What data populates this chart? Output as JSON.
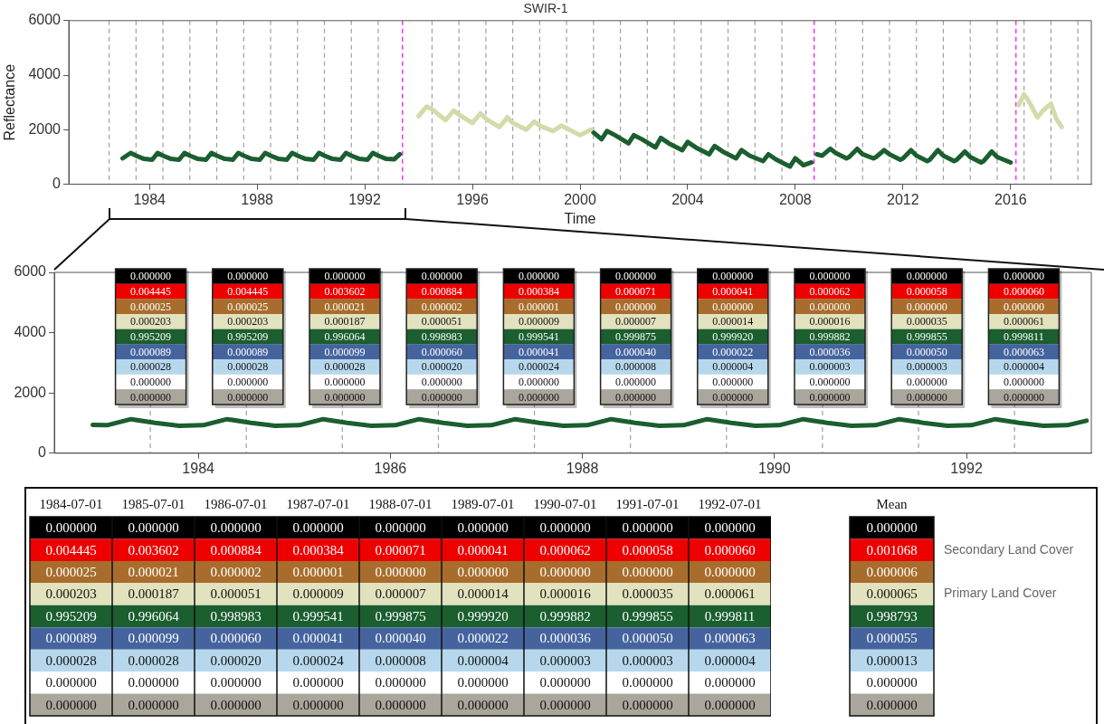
{
  "chart_data": [
    {
      "type": "line",
      "title": "SWIR-1",
      "xlabel": "Time",
      "ylabel": "Reflectance",
      "xlim": [
        1981,
        2019
      ],
      "xticks": [
        1984,
        1988,
        1992,
        1996,
        2000,
        2004,
        2008,
        2012,
        2016
      ],
      "ylim": [
        0,
        6000
      ],
      "yticks": [
        0,
        2000,
        4000,
        6000
      ],
      "legend": false,
      "grid": false,
      "series": [
        {
          "color": "#1b5e2f",
          "x": [
            1983.0,
            1983.3,
            1983.5,
            1983.8,
            1984.1,
            1984.3,
            1984.5,
            1984.8,
            1985.1,
            1985.3,
            1985.5,
            1985.8,
            1986.1,
            1986.3,
            1986.5,
            1986.8,
            1987.1,
            1987.3,
            1987.5,
            1987.8,
            1988.1,
            1988.3,
            1988.5,
            1988.8,
            1989.1,
            1989.3,
            1989.5,
            1989.8,
            1990.1,
            1990.3,
            1990.5,
            1990.8,
            1991.1,
            1991.3,
            1991.5,
            1991.8,
            1992.1,
            1992.3,
            1992.5,
            1992.8,
            1993.1,
            1993.3
          ],
          "values": [
            950,
            1150,
            1050,
            930,
            900,
            1150,
            1050,
            930,
            900,
            1150,
            1050,
            930,
            900,
            1150,
            1050,
            930,
            900,
            1150,
            1050,
            930,
            900,
            1150,
            1050,
            930,
            900,
            1150,
            1050,
            930,
            900,
            1150,
            1050,
            930,
            900,
            1150,
            1050,
            930,
            900,
            1150,
            1050,
            930,
            920,
            1100
          ]
        },
        {
          "color": "#d3dbab",
          "x": [
            1994.0,
            1994.3,
            1994.5,
            1995.0,
            1995.3,
            1995.5,
            1996.0,
            1996.3,
            1996.5,
            1997.0,
            1997.3,
            1997.5,
            1998.0,
            1998.3,
            1998.5,
            1999.0,
            1999.3,
            1999.5,
            2000.0,
            2000.4
          ],
          "values": [
            2500,
            2850,
            2750,
            2350,
            2700,
            2550,
            2250,
            2600,
            2400,
            2100,
            2450,
            2250,
            2000,
            2300,
            2150,
            1950,
            2150,
            2050,
            1800,
            2000
          ]
        },
        {
          "color": "#1b5e2f",
          "x": [
            2000.5,
            2000.8,
            2001.0,
            2001.3,
            2001.8,
            2002.0,
            2002.3,
            2002.8,
            2003.0,
            2003.3,
            2003.8,
            2004.0,
            2004.3,
            2004.8,
            2005.0,
            2005.3,
            2005.8,
            2006.0,
            2006.3,
            2006.8,
            2007.0,
            2007.3,
            2007.8,
            2008.0,
            2008.3,
            2008.6
          ],
          "values": [
            1900,
            1650,
            1950,
            1800,
            1500,
            1800,
            1650,
            1350,
            1700,
            1500,
            1250,
            1550,
            1350,
            1100,
            1400,
            1200,
            950,
            1250,
            1050,
            850,
            1100,
            900,
            650,
            950,
            700,
            800
          ]
        },
        {
          "color": "#1b5e2f",
          "x": [
            2008.8,
            2009.0,
            2009.3,
            2009.5,
            2009.9,
            2010.0,
            2010.3,
            2010.5,
            2010.9,
            2011.0,
            2011.3,
            2011.5,
            2011.9,
            2012.0,
            2012.3,
            2012.5,
            2012.9,
            2013.0,
            2013.3,
            2013.5,
            2013.9,
            2014.0,
            2014.3,
            2014.5,
            2014.9,
            2015.0,
            2015.3,
            2015.5,
            2016.0
          ],
          "values": [
            1100,
            1050,
            1300,
            1150,
            950,
            1000,
            1300,
            1100,
            950,
            1000,
            1250,
            1100,
            900,
            950,
            1250,
            1050,
            850,
            900,
            1250,
            1050,
            850,
            900,
            1200,
            1000,
            800,
            850,
            1200,
            1000,
            800
          ]
        },
        {
          "color": "#d3dbab",
          "x": [
            2016.3,
            2016.5,
            2016.7,
            2017.0,
            2017.2,
            2017.5,
            2017.7,
            2017.9
          ],
          "values": [
            2900,
            3300,
            3000,
            2450,
            2700,
            2950,
            2400,
            2100
          ]
        }
      ],
      "ref_lines": [
        {
          "axis": "x",
          "value": 1982.5,
          "color": "#a0a0a0",
          "line_style": "dashed"
        },
        {
          "axis": "x",
          "value": 1983.5,
          "color": "#a0a0a0",
          "line_style": "dashed"
        },
        {
          "axis": "x",
          "value": 1984.5,
          "color": "#a0a0a0",
          "line_style": "dashed"
        },
        {
          "axis": "x",
          "value": 1985.5,
          "color": "#a0a0a0",
          "line_style": "dashed"
        },
        {
          "axis": "x",
          "value": 1986.5,
          "color": "#a0a0a0",
          "line_style": "dashed"
        },
        {
          "axis": "x",
          "value": 1987.5,
          "color": "#a0a0a0",
          "line_style": "dashed"
        },
        {
          "axis": "x",
          "value": 1988.5,
          "color": "#a0a0a0",
          "line_style": "dashed"
        },
        {
          "axis": "x",
          "value": 1989.5,
          "color": "#a0a0a0",
          "line_style": "dashed"
        },
        {
          "axis": "x",
          "value": 1990.5,
          "color": "#a0a0a0",
          "line_style": "dashed"
        },
        {
          "axis": "x",
          "value": 1991.5,
          "color": "#a0a0a0",
          "line_style": "dashed"
        },
        {
          "axis": "x",
          "value": 1992.5,
          "color": "#a0a0a0",
          "line_style": "dashed"
        },
        {
          "axis": "x",
          "value": 1994.5,
          "color": "#a0a0a0",
          "line_style": "dashed"
        },
        {
          "axis": "x",
          "value": 1995.5,
          "color": "#a0a0a0",
          "line_style": "dashed"
        },
        {
          "axis": "x",
          "value": 1996.5,
          "color": "#a0a0a0",
          "line_style": "dashed"
        },
        {
          "axis": "x",
          "value": 1997.5,
          "color": "#a0a0a0",
          "line_style": "dashed"
        },
        {
          "axis": "x",
          "value": 1998.5,
          "color": "#a0a0a0",
          "line_style": "dashed"
        },
        {
          "axis": "x",
          "value": 1999.5,
          "color": "#a0a0a0",
          "line_style": "dashed"
        },
        {
          "axis": "x",
          "value": 2000.5,
          "color": "#a0a0a0",
          "line_style": "dashed"
        },
        {
          "axis": "x",
          "value": 2001.5,
          "color": "#a0a0a0",
          "line_style": "dashed"
        },
        {
          "axis": "x",
          "value": 2002.5,
          "color": "#a0a0a0",
          "line_style": "dashed"
        },
        {
          "axis": "x",
          "value": 2003.5,
          "color": "#a0a0a0",
          "line_style": "dashed"
        },
        {
          "axis": "x",
          "value": 2004.5,
          "color": "#a0a0a0",
          "line_style": "dashed"
        },
        {
          "axis": "x",
          "value": 2005.5,
          "color": "#a0a0a0",
          "line_style": "dashed"
        },
        {
          "axis": "x",
          "value": 2006.5,
          "color": "#a0a0a0",
          "line_style": "dashed"
        },
        {
          "axis": "x",
          "value": 2007.5,
          "color": "#a0a0a0",
          "line_style": "dashed"
        },
        {
          "axis": "x",
          "value": 2009.5,
          "color": "#a0a0a0",
          "line_style": "dashed"
        },
        {
          "axis": "x",
          "value": 2010.5,
          "color": "#a0a0a0",
          "line_style": "dashed"
        },
        {
          "axis": "x",
          "value": 2011.5,
          "color": "#a0a0a0",
          "line_style": "dashed"
        },
        {
          "axis": "x",
          "value": 2012.5,
          "color": "#a0a0a0",
          "line_style": "dashed"
        },
        {
          "axis": "x",
          "value": 2013.5,
          "color": "#a0a0a0",
          "line_style": "dashed"
        },
        {
          "axis": "x",
          "value": 2014.5,
          "color": "#a0a0a0",
          "line_style": "dashed"
        },
        {
          "axis": "x",
          "value": 2015.5,
          "color": "#a0a0a0",
          "line_style": "dashed"
        },
        {
          "axis": "x",
          "value": 2016.5,
          "color": "#a0a0a0",
          "line_style": "dashed"
        },
        {
          "axis": "x",
          "value": 2017.5,
          "color": "#a0a0a0",
          "line_style": "dashed"
        },
        {
          "axis": "x",
          "value": 2018.5,
          "color": "#a0a0a0",
          "line_style": "dashed"
        },
        {
          "axis": "x",
          "value": 1993.4,
          "color": "#ff00ff",
          "line_style": "dashed"
        },
        {
          "axis": "x",
          "value": 2008.7,
          "color": "#ff00ff",
          "line_style": "dashed"
        },
        {
          "axis": "x",
          "value": 2016.2,
          "color": "#ff00ff",
          "line_style": "dashed"
        }
      ]
    },
    {
      "type": "line",
      "xlim": [
        1982.5,
        1993.3
      ],
      "xticks": [
        1984,
        1986,
        1988,
        1990,
        1992
      ],
      "ylim": [
        0,
        6000
      ],
      "yticks": [
        0,
        2000,
        4000,
        6000
      ],
      "legend": false,
      "grid": false,
      "series": [
        {
          "color": "#1b5e2f",
          "x": [
            1982.9,
            1983.05,
            1983.3,
            1983.55,
            1983.8,
            1984.05,
            1984.3,
            1984.55,
            1984.8,
            1985.05,
            1985.3,
            1985.55,
            1985.8,
            1986.05,
            1986.3,
            1986.55,
            1986.8,
            1987.05,
            1987.3,
            1987.55,
            1987.8,
            1988.05,
            1988.3,
            1988.55,
            1988.8,
            1989.05,
            1989.3,
            1989.55,
            1989.8,
            1990.05,
            1990.3,
            1990.55,
            1990.8,
            1991.05,
            1991.3,
            1991.55,
            1991.8,
            1992.05,
            1992.3,
            1992.55,
            1992.8,
            1993.05,
            1993.25
          ],
          "values": [
            940,
            930,
            1130,
            1010,
            910,
            930,
            1130,
            1010,
            910,
            930,
            1130,
            1010,
            910,
            930,
            1130,
            1010,
            910,
            930,
            1130,
            1010,
            910,
            930,
            1130,
            1010,
            910,
            930,
            1130,
            1010,
            910,
            930,
            1130,
            1010,
            910,
            930,
            1130,
            1010,
            910,
            930,
            1130,
            1010,
            910,
            930,
            1080
          ]
        }
      ],
      "ref_lines": [
        {
          "axis": "x",
          "value": 1983.5,
          "color": "#a0a0a0",
          "line_style": "dashed"
        },
        {
          "axis": "x",
          "value": 1984.5,
          "color": "#a0a0a0",
          "line_style": "dashed"
        },
        {
          "axis": "x",
          "value": 1985.5,
          "color": "#a0a0a0",
          "line_style": "dashed"
        },
        {
          "axis": "x",
          "value": 1986.5,
          "color": "#a0a0a0",
          "line_style": "dashed"
        },
        {
          "axis": "x",
          "value": 1987.5,
          "color": "#a0a0a0",
          "line_style": "dashed"
        },
        {
          "axis": "x",
          "value": 1988.5,
          "color": "#a0a0a0",
          "line_style": "dashed"
        },
        {
          "axis": "x",
          "value": 1989.5,
          "color": "#a0a0a0",
          "line_style": "dashed"
        },
        {
          "axis": "x",
          "value": 1990.5,
          "color": "#a0a0a0",
          "line_style": "dashed"
        },
        {
          "axis": "x",
          "value": 1991.5,
          "color": "#a0a0a0",
          "line_style": "dashed"
        },
        {
          "axis": "x",
          "value": 1992.5,
          "color": "#a0a0a0",
          "line_style": "dashed"
        }
      ]
    },
    {
      "type": "other",
      "colors": [
        "#000000",
        "#ee0000",
        "#a86d2c",
        "#e2e2be",
        "#1b5e2f",
        "#45649e",
        "#b7d8ec",
        "#ffffff",
        "#aba69b"
      ],
      "cell_labels": [
        [
          "0.000000",
          "0.000000",
          "0.000000",
          "0.000000",
          "0.000000",
          "0.000000",
          "0.000000",
          "0.000000",
          "0.000000",
          "0.000000"
        ],
        [
          "0.004445",
          "0.004445",
          "0.003602",
          "0.000884",
          "0.000384",
          "0.000071",
          "0.000041",
          "0.000062",
          "0.000058",
          "0.000060"
        ],
        [
          "0.000025",
          "0.000025",
          "0.000021",
          "0.000002",
          "0.000001",
          "0.000000",
          "0.000000",
          "0.000000",
          "0.000000",
          "0.000000"
        ],
        [
          "0.000203",
          "0.000203",
          "0.000187",
          "0.000051",
          "0.000009",
          "0.000007",
          "0.000014",
          "0.000016",
          "0.000035",
          "0.000061"
        ],
        [
          "0.995209",
          "0.995209",
          "0.996064",
          "0.998983",
          "0.999541",
          "0.999875",
          "0.999920",
          "0.999882",
          "0.999855",
          "0.999811"
        ],
        [
          "0.000089",
          "0.000089",
          "0.000099",
          "0.000060",
          "0.000041",
          "0.000040",
          "0.000022",
          "0.000036",
          "0.000050",
          "0.000063"
        ],
        [
          "0.000028",
          "0.000028",
          "0.000028",
          "0.000020",
          "0.000024",
          "0.000008",
          "0.000004",
          "0.000003",
          "0.000003",
          "0.000004"
        ],
        [
          "0.000000",
          "0.000000",
          "0.000000",
          "0.000000",
          "0.000000",
          "0.000000",
          "0.000000",
          "0.000000",
          "0.000000",
          "0.000000"
        ],
        [
          "0.000000",
          "0.000000",
          "0.000000",
          "0.000000",
          "0.000000",
          "0.000000",
          "0.000000",
          "0.000000",
          "0.000000",
          "0.000000"
        ]
      ]
    },
    {
      "type": "other",
      "categories": [
        "1984-07-01",
        "1985-07-01",
        "1986-07-01",
        "1987-07-01",
        "1988-07-01",
        "1989-07-01",
        "1990-07-01",
        "1991-07-01",
        "1992-07-01"
      ],
      "colors": [
        "#000000",
        "#ee0000",
        "#a86d2c",
        "#e2e2be",
        "#1b5e2f",
        "#45649e",
        "#b7d8ec",
        "#ffffff",
        "#aba69b"
      ],
      "cell_labels": [
        [
          "0.000000",
          "0.000000",
          "0.000000",
          "0.000000",
          "0.000000",
          "0.000000",
          "0.000000",
          "0.000000",
          "0.000000"
        ],
        [
          "0.004445",
          "0.003602",
          "0.000884",
          "0.000384",
          "0.000071",
          "0.000041",
          "0.000062",
          "0.000058",
          "0.000060"
        ],
        [
          "0.000025",
          "0.000021",
          "0.000002",
          "0.000001",
          "0.000000",
          "0.000000",
          "0.000000",
          "0.000000",
          "0.000000"
        ],
        [
          "0.000203",
          "0.000187",
          "0.000051",
          "0.000009",
          "0.000007",
          "0.000014",
          "0.000016",
          "0.000035",
          "0.000061"
        ],
        [
          "0.995209",
          "0.996064",
          "0.998983",
          "0.999541",
          "0.999875",
          "0.999920",
          "0.999882",
          "0.999855",
          "0.999811"
        ],
        [
          "0.000089",
          "0.000099",
          "0.000060",
          "0.000041",
          "0.000040",
          "0.000022",
          "0.000036",
          "0.000050",
          "0.000063"
        ],
        [
          "0.000028",
          "0.000028",
          "0.000020",
          "0.000024",
          "0.000008",
          "0.000004",
          "0.000003",
          "0.000003",
          "0.000004"
        ],
        [
          "0.000000",
          "0.000000",
          "0.000000",
          "0.000000",
          "0.000000",
          "0.000000",
          "0.000000",
          "0.000000",
          "0.000000"
        ],
        [
          "0.000000",
          "0.000000",
          "0.000000",
          "0.000000",
          "0.000000",
          "0.000000",
          "0.000000",
          "0.000000",
          "0.000000"
        ]
      ]
    },
    {
      "type": "other",
      "categories": [
        "Mean"
      ],
      "y2_categories": [
        null,
        "Secondary Land Cover",
        null,
        "Primary Land Cover",
        null,
        null,
        null,
        null,
        null
      ],
      "colors": [
        "#000000",
        "#ee0000",
        "#a86d2c",
        "#e2e2be",
        "#1b5e2f",
        "#45649e",
        "#b7d8ec",
        "#ffffff",
        "#aba69b"
      ],
      "cell_labels": [
        [
          "0.000000"
        ],
        [
          "0.001068"
        ],
        [
          "0.000006"
        ],
        [
          "0.000065"
        ],
        [
          "0.998793"
        ],
        [
          "0.000055"
        ],
        [
          "0.000013"
        ],
        [
          "0.000000"
        ],
        [
          "0.000000"
        ]
      ]
    }
  ]
}
